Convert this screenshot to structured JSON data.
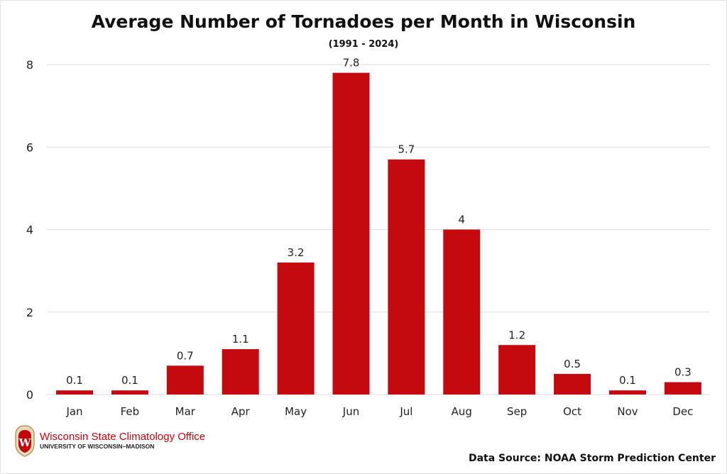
{
  "chart_data": {
    "type": "bar",
    "title": "Average Number of Tornadoes per Month in Wisconsin",
    "subtitle": "(1991 - 2024)",
    "categories": [
      "Jan",
      "Feb",
      "Mar",
      "Apr",
      "May",
      "Jun",
      "Jul",
      "Aug",
      "Sep",
      "Oct",
      "Nov",
      "Dec"
    ],
    "values": [
      0.1,
      0.1,
      0.7,
      1.1,
      3.2,
      7.8,
      5.7,
      4,
      1.2,
      0.5,
      0.1,
      0.3
    ],
    "data_labels": [
      "0.1",
      "0.1",
      "0.7",
      "1.1",
      "3.2",
      "7.8",
      "5.7",
      "4",
      "1.2",
      "0.5",
      "0.1",
      "0.3"
    ],
    "xlabel": "",
    "ylabel": "",
    "ylim": [
      0,
      8
    ],
    "yticks": [
      0,
      2,
      4,
      6,
      8
    ],
    "grid": true,
    "bar_color": "#c4090f"
  },
  "footer": {
    "logo_name": "Wisconsin State Climatology Office",
    "logo_sub": "UNIVERSITY OF WISCONSIN–MADISON",
    "source": "Data Source: NOAA Storm Prediction Center"
  }
}
